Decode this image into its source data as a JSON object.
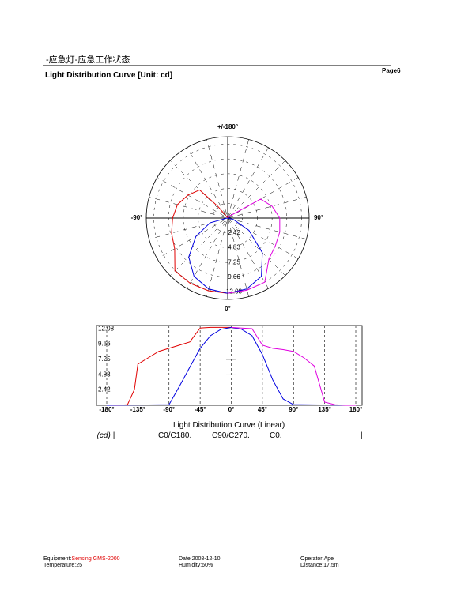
{
  "header": {
    "title": "-应急灯-应急工作状态",
    "subtitle": "Light Distribution Curve   [Unit: cd]",
    "page": "Page6"
  },
  "chart_data": [
    {
      "type": "polar",
      "rlim": [
        0,
        13.3
      ],
      "rticks": [
        2.42,
        4.83,
        7.25,
        9.66,
        12.08
      ],
      "angle_ticks": [
        {
          "value": 180,
          "label": "+/-180°"
        },
        {
          "value": -90,
          "label": "-90°"
        },
        {
          "value": 90,
          "label": "90°"
        },
        {
          "value": 0,
          "label": "0°"
        }
      ],
      "series": [
        {
          "color": "#e00000",
          "x": [
            -180,
            -165,
            -150,
            -140,
            -135,
            -120,
            -105,
            -90,
            -75,
            -60,
            -45,
            -30,
            -15,
            0
          ],
          "values": [
            0,
            0,
            0.1,
            2.5,
            6.5,
            7.5,
            8.5,
            9,
            9.5,
            10,
            12.2,
            12.3,
            12.3,
            12.3
          ]
        },
        {
          "color": "#0000e0",
          "x": [
            -180,
            -90,
            -75,
            -60,
            -45,
            -30,
            -15,
            0,
            15,
            30,
            45,
            60,
            75,
            90,
            180
          ],
          "values": [
            0,
            0.1,
            3,
            6,
            9,
            11,
            12,
            12.3,
            12,
            11,
            8,
            4,
            1,
            0.1,
            0
          ]
        },
        {
          "color": "#e000e0",
          "x": [
            0,
            15,
            30,
            45,
            60,
            75,
            90,
            105,
            120,
            135,
            150,
            165,
            180
          ],
          "values": [
            12.3,
            12.2,
            12.1,
            9.5,
            9,
            8.8,
            8.5,
            7.5,
            6.2,
            0.5,
            0.1,
            0,
            0
          ]
        }
      ]
    },
    {
      "type": "line",
      "title": "Light Distribution Curve (Linear)",
      "unit_label": "|(cd) |",
      "xlim": [
        -180,
        180
      ],
      "ylim": [
        0,
        12.6
      ],
      "xticks": [
        {
          "value": -180,
          "label": "-180°"
        },
        {
          "value": -135,
          "label": "-135°"
        },
        {
          "value": -90,
          "label": "-90°"
        },
        {
          "value": -45,
          "label": "-45°"
        },
        {
          "value": 0,
          "label": "0°"
        },
        {
          "value": 45,
          "label": "45°"
        },
        {
          "value": 90,
          "label": "90°"
        },
        {
          "value": 135,
          "label": "135°"
        },
        {
          "value": 180,
          "label": "180°"
        }
      ],
      "yticks": [
        2.42,
        4.83,
        7.25,
        9.66,
        12.08
      ],
      "series": [
        {
          "name": "C0/C180.",
          "color": "#e00000",
          "x": [
            -180,
            -165,
            -150,
            -140,
            -135,
            -120,
            -105,
            -90,
            -75,
            -60,
            -45,
            -30,
            -15,
            0
          ],
          "values": [
            0,
            0,
            0.1,
            2.5,
            6.5,
            7.5,
            8.5,
            9,
            9.5,
            10,
            12.2,
            12.3,
            12.3,
            12.3
          ]
        },
        {
          "name": "C90/C270.",
          "color": "#0000e0",
          "x": [
            -180,
            -90,
            -75,
            -60,
            -45,
            -30,
            -15,
            0,
            15,
            30,
            45,
            60,
            75,
            90,
            180
          ],
          "values": [
            0,
            0.1,
            3,
            6,
            9,
            11,
            12,
            12.3,
            12,
            11,
            8,
            4,
            1,
            0.1,
            0
          ]
        },
        {
          "name": "C0.",
          "color": "#e000e0",
          "x": [
            0,
            15,
            30,
            45,
            60,
            75,
            90,
            105,
            120,
            135,
            150,
            165,
            180
          ],
          "values": [
            12.3,
            12.2,
            12.1,
            9.5,
            9,
            8.8,
            8.5,
            7.5,
            6.2,
            0.5,
            0.1,
            0,
            0
          ]
        }
      ]
    }
  ],
  "footer": {
    "equipment_label": "Equipment:",
    "equipment": "Sensing GMS-2000",
    "temperature": "Temperature:25",
    "date": "Date:2008-12-10",
    "humidity": "Humidity:60%",
    "operator": "Operator:Ape",
    "distance": "Distance:17.5m"
  }
}
